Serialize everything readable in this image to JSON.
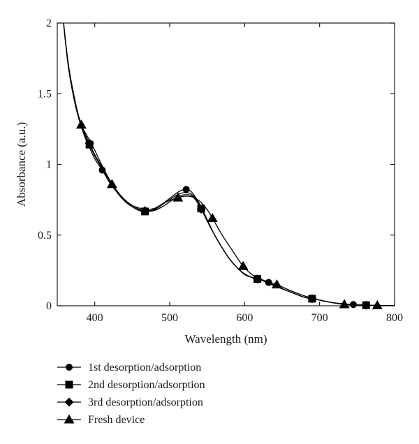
{
  "chart_data": {
    "type": "line",
    "title": "",
    "xlabel": "Wavelength (nm)",
    "ylabel": "Absorbance (a.u.)",
    "xlim": [
      350,
      800
    ],
    "ylim": [
      0,
      2
    ],
    "xticks": [
      400,
      500,
      600,
      700,
      800
    ],
    "xtick_labels": [
      "400",
      "500",
      "600",
      "700",
      "800"
    ],
    "yticks": [
      0,
      0.5,
      1,
      1.5,
      2
    ],
    "ytick_labels": [
      "0",
      "0.5",
      "1",
      "1.5",
      "2"
    ],
    "grid": false,
    "legend_position": "bottom",
    "series": [
      {
        "name": "1st desorption/adsorption",
        "marker": "circle",
        "color": "#000000",
        "x": [
          358,
          365,
          375,
          385,
          393,
          400,
          410,
          420,
          430,
          440,
          450,
          460,
          470,
          480,
          490,
          500,
          510,
          515,
          520,
          525,
          530,
          540,
          550,
          560,
          570,
          580,
          590,
          600,
          610,
          620,
          630,
          640,
          660,
          680,
          700,
          720,
          740,
          760,
          780,
          800
        ],
        "y": [
          2.02,
          1.7,
          1.4,
          1.22,
          1.12,
          1.04,
          0.96,
          0.87,
          0.8,
          0.74,
          0.7,
          0.675,
          0.67,
          0.685,
          0.72,
          0.76,
          0.8,
          0.815,
          0.825,
          0.82,
          0.8,
          0.72,
          0.61,
          0.5,
          0.41,
          0.33,
          0.27,
          0.22,
          0.2,
          0.19,
          0.17,
          0.145,
          0.1,
          0.06,
          0.04,
          0.02,
          0.01,
          0.005,
          0.002,
          0.0
        ],
        "marker_x": [
          410,
          522,
          632,
          690,
          745
        ]
      },
      {
        "name": "2nd desorption/adsorption",
        "marker": "square",
        "color": "#000000",
        "x": [
          358,
          365,
          375,
          385,
          393,
          400,
          410,
          420,
          430,
          440,
          450,
          460,
          470,
          480,
          490,
          500,
          510,
          520,
          530,
          540,
          550,
          560,
          570,
          580,
          590,
          600,
          610,
          620,
          630,
          640,
          660,
          680,
          700,
          720,
          740,
          760,
          780,
          800
        ],
        "y": [
          2.02,
          1.68,
          1.4,
          1.23,
          1.14,
          1.06,
          0.97,
          0.88,
          0.8,
          0.74,
          0.7,
          0.672,
          0.665,
          0.68,
          0.715,
          0.75,
          0.785,
          0.8,
          0.785,
          0.71,
          0.6,
          0.5,
          0.41,
          0.33,
          0.27,
          0.225,
          0.2,
          0.185,
          0.165,
          0.14,
          0.1,
          0.06,
          0.04,
          0.02,
          0.01,
          0.004,
          0.002,
          0.0
        ],
        "marker_x": [
          393,
          467,
          542,
          617,
          690,
          762
        ]
      },
      {
        "name": "3rd desorption/adsorption",
        "marker": "diamond",
        "color": "#000000",
        "x": [
          358,
          365,
          375,
          385,
          393,
          400,
          410,
          420,
          430,
          440,
          450,
          460,
          470,
          480,
          490,
          500,
          510,
          520,
          530,
          540,
          550,
          560,
          570,
          580,
          590,
          600,
          610,
          620,
          630,
          640,
          660,
          680,
          700,
          720,
          740,
          760,
          780,
          800
        ],
        "y": [
          2.02,
          1.69,
          1.41,
          1.24,
          1.15,
          1.07,
          0.98,
          0.89,
          0.81,
          0.75,
          0.71,
          0.68,
          0.67,
          0.675,
          0.7,
          0.735,
          0.77,
          0.785,
          0.775,
          0.705,
          0.6,
          0.5,
          0.41,
          0.33,
          0.27,
          0.225,
          0.2,
          0.185,
          0.165,
          0.14,
          0.1,
          0.06,
          0.04,
          0.02,
          0.01,
          0.004,
          0.002,
          0.0
        ],
        "marker_x": [
          393,
          467,
          542,
          617,
          690,
          762
        ]
      },
      {
        "name": "Fresh device",
        "marker": "triangle",
        "color": "#000000",
        "x": [
          358,
          365,
          375,
          382,
          390,
          400,
          410,
          423,
          430,
          440,
          450,
          460,
          467,
          480,
          490,
          500,
          511,
          520,
          530,
          540,
          550,
          557,
          570,
          580,
          590,
          598,
          610,
          620,
          630,
          643,
          660,
          680,
          700,
          720,
          733,
          760,
          777,
          800
        ],
        "y": [
          2.02,
          1.7,
          1.42,
          1.28,
          1.2,
          1.1,
          0.99,
          0.86,
          0.81,
          0.75,
          0.71,
          0.69,
          0.68,
          0.69,
          0.72,
          0.745,
          0.765,
          0.775,
          0.77,
          0.74,
          0.68,
          0.62,
          0.5,
          0.42,
          0.34,
          0.28,
          0.22,
          0.19,
          0.17,
          0.15,
          0.11,
          0.07,
          0.04,
          0.02,
          0.01,
          0.005,
          0.003,
          0.0
        ],
        "marker_x": [
          382,
          423,
          511,
          557,
          598,
          643,
          733,
          777
        ]
      }
    ]
  }
}
